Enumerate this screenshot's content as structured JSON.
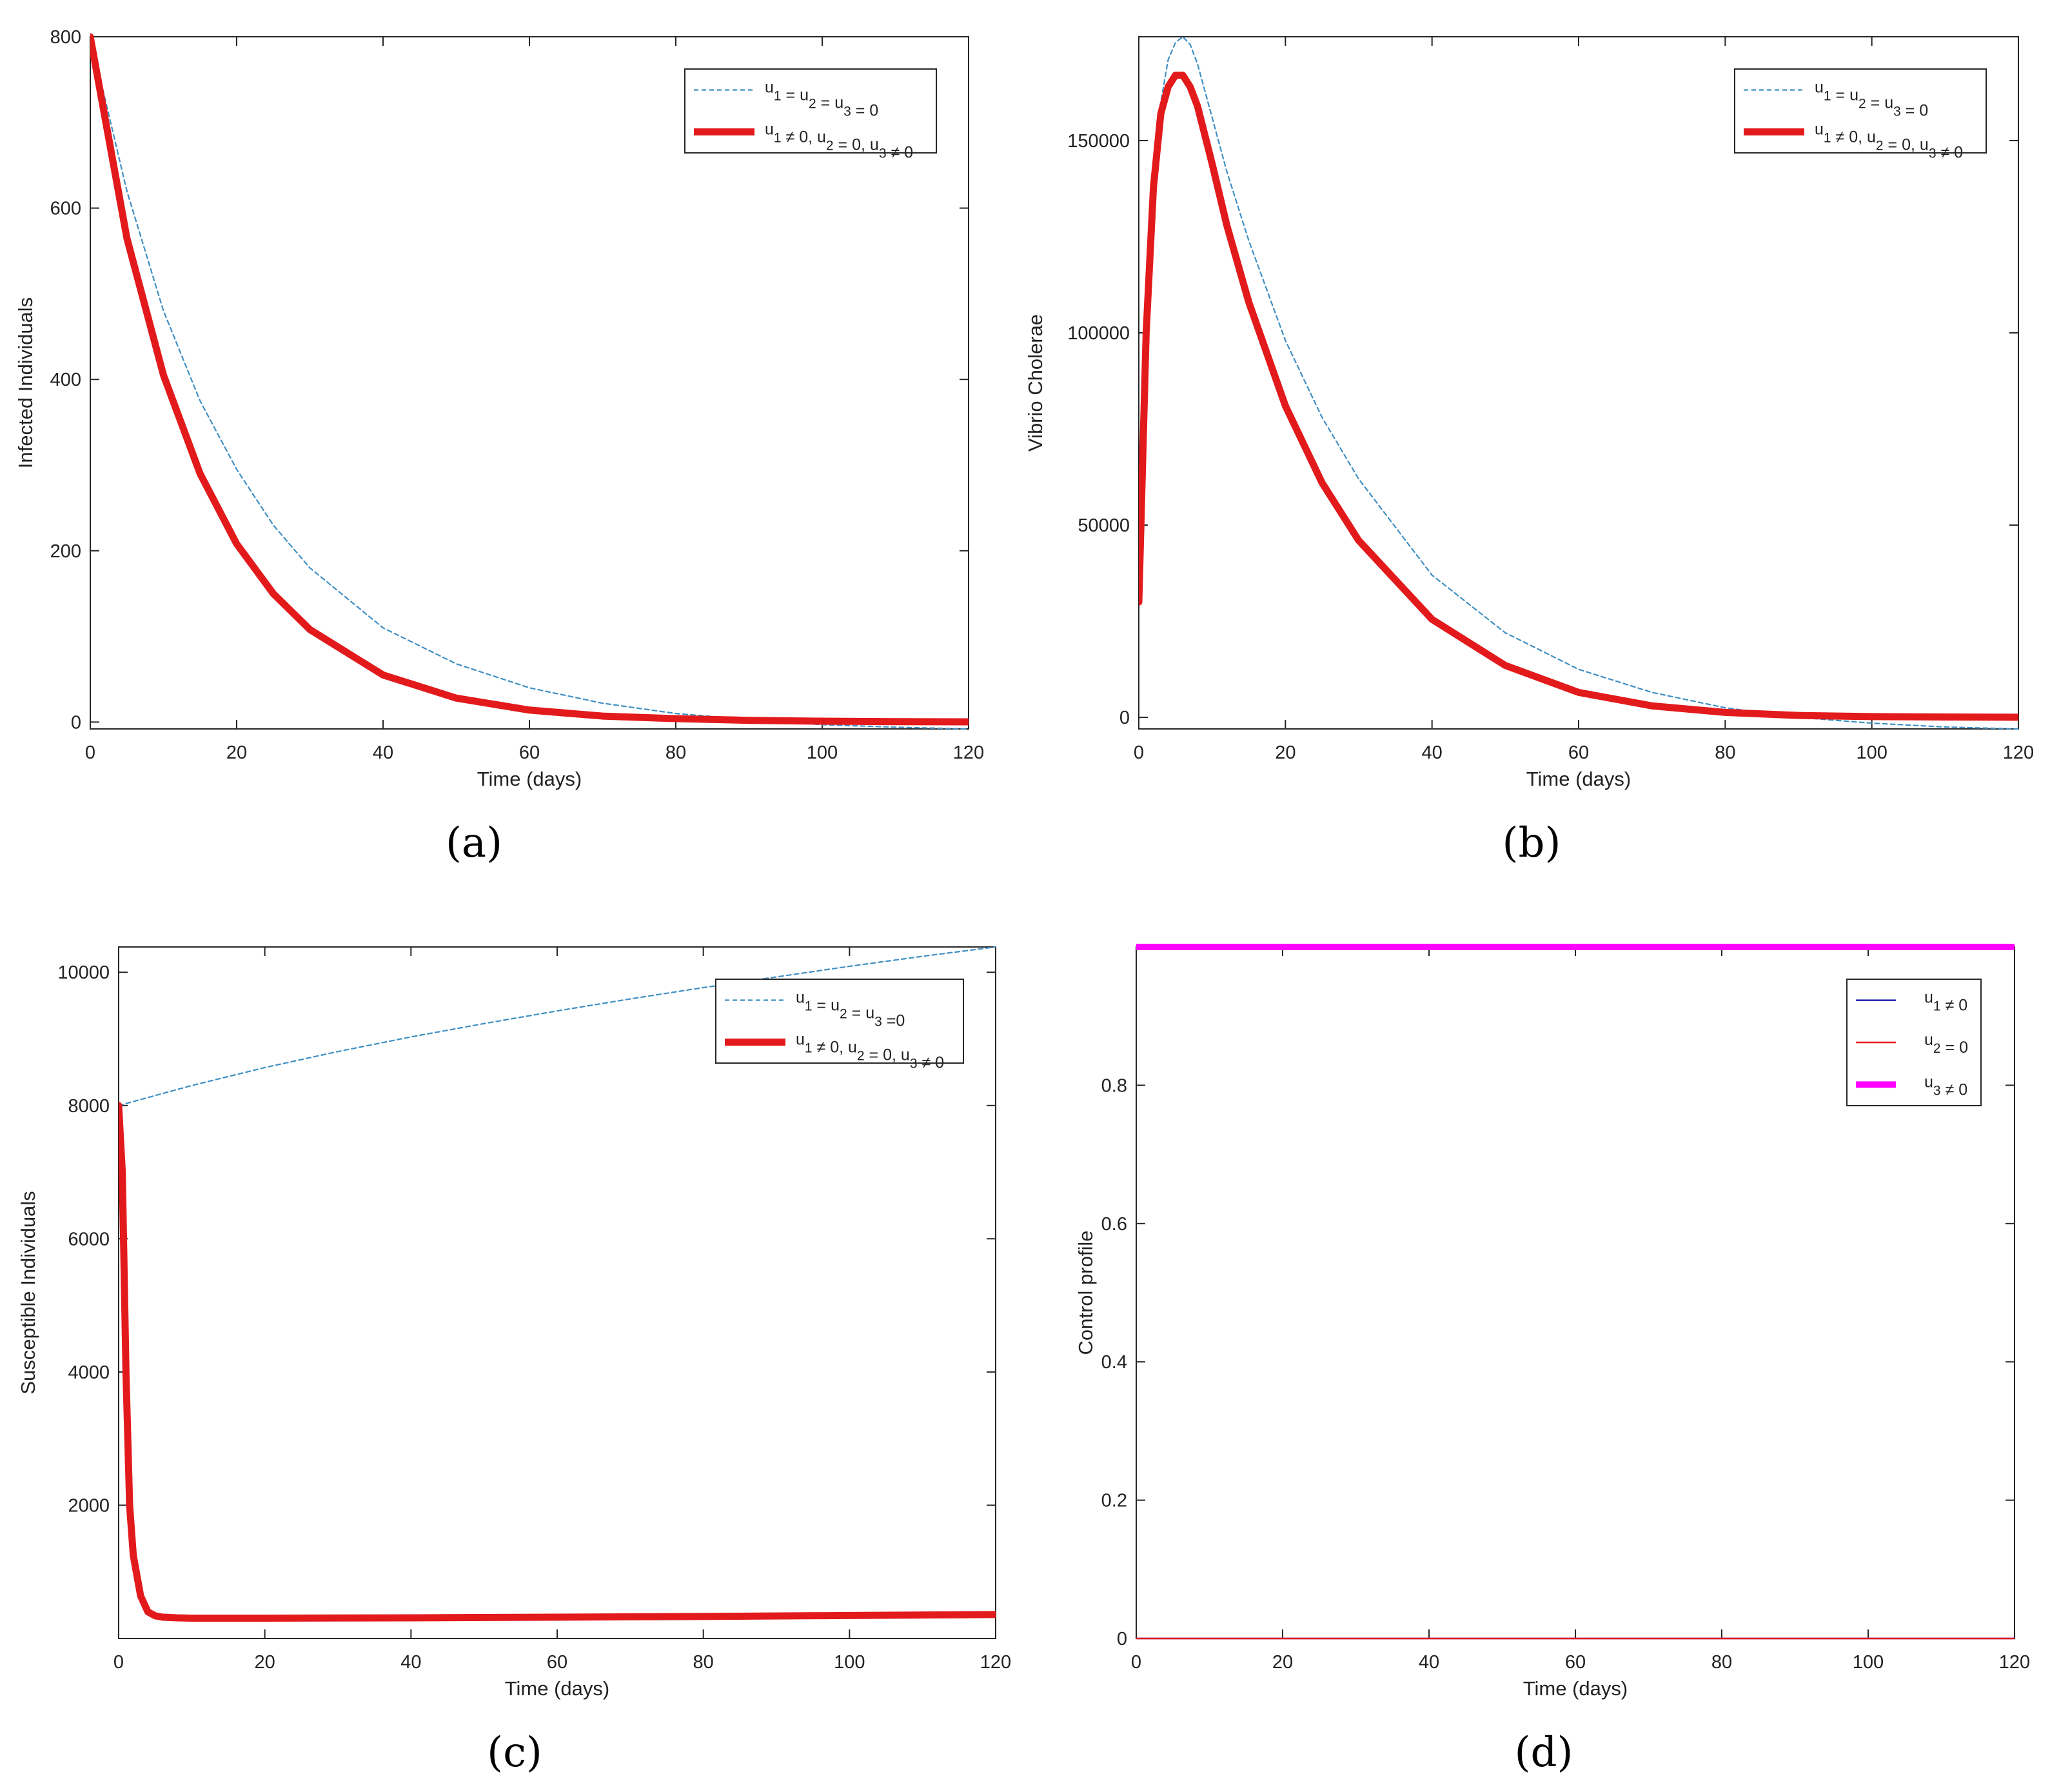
{
  "figure": {
    "panels": [
      "(a)",
      "(b)",
      "(c)",
      "(d)"
    ],
    "xlabel": "Time (days)"
  },
  "colors": {
    "red": "#e31a1c",
    "dashed_blue": "#3f8fc4",
    "blue": "#2b2bb5",
    "magenta": "#ff00ff",
    "axis": "#262626"
  },
  "chart_data": [
    {
      "id": "a",
      "type": "line",
      "title": "",
      "xlabel": "Time (days)",
      "ylabel": "Infected Individuals",
      "xlim": [
        0,
        120
      ],
      "ylim": [
        -8,
        800
      ],
      "xticks": [
        0,
        20,
        40,
        60,
        80,
        100,
        120
      ],
      "yticks": [
        0,
        200,
        400,
        600,
        800
      ],
      "legend_position": "top-right",
      "series": [
        {
          "name": "u1 = u2 = u3 = 0",
          "style": "dashed-thin",
          "color": "#3f8fc4",
          "x": [
            0,
            5,
            10,
            15,
            20,
            25,
            30,
            40,
            50,
            60,
            70,
            80,
            90,
            100,
            110,
            120
          ],
          "y": [
            800,
            620,
            480,
            375,
            295,
            230,
            180,
            110,
            68,
            40,
            22,
            10,
            3,
            -3,
            -6,
            -8
          ]
        },
        {
          "name": "u1 ≠ 0, u2 = 0, u3 ≠ 0",
          "style": "solid-thick",
          "color": "#e31a1c",
          "x": [
            0,
            5,
            10,
            15,
            20,
            25,
            30,
            40,
            50,
            60,
            70,
            80,
            90,
            100,
            110,
            120
          ],
          "y": [
            800,
            565,
            405,
            290,
            208,
            150,
            108,
            55,
            28,
            14,
            7,
            4,
            2,
            1,
            0.5,
            0.3
          ]
        }
      ],
      "legend": [
        {
          "sub": [
            "1",
            "2",
            "3"
          ],
          "text": "u1 = u2 = u3 = 0"
        },
        {
          "sub": [
            "1",
            "2",
            "3"
          ],
          "text": "u1 ≠ 0, u2 = 0, u3 ≠ 0"
        }
      ]
    },
    {
      "id": "b",
      "type": "line",
      "title": "",
      "xlabel": "Time (days)",
      "ylabel": "Vibrio Cholerae",
      "xlim": [
        0,
        120
      ],
      "ylim": [
        -3000,
        177000
      ],
      "xticks": [
        0,
        20,
        40,
        60,
        80,
        100,
        120
      ],
      "yticks": [
        0,
        50000,
        100000,
        150000
      ],
      "legend_position": "top-right",
      "series": [
        {
          "name": "u1 = u2 = u3 = 0",
          "style": "dashed-thin",
          "color": "#3f8fc4",
          "x": [
            0,
            1,
            2,
            3,
            4,
            5,
            6,
            7,
            8,
            10,
            12,
            15,
            20,
            25,
            30,
            40,
            50,
            60,
            70,
            80,
            90,
            100,
            110,
            120
          ],
          "y": [
            30000,
            100000,
            138000,
            160000,
            171000,
            175500,
            177000,
            175000,
            170000,
            156000,
            142000,
            124000,
            98000,
            78000,
            62000,
            37000,
            22000,
            12500,
            6500,
            2500,
            0,
            -1500,
            -2500,
            -3000
          ]
        },
        {
          "name": "u1 ≠ 0, u2 = 0, u3 ≠ 0",
          "style": "solid-thick",
          "color": "#e31a1c",
          "x": [
            0,
            1,
            2,
            3,
            4,
            5,
            6,
            7,
            8,
            10,
            12,
            15,
            20,
            25,
            30,
            40,
            50,
            60,
            70,
            80,
            90,
            100,
            110,
            120
          ],
          "y": [
            30000,
            100000,
            138000,
            157000,
            164000,
            167000,
            167000,
            164000,
            159000,
            144000,
            128000,
            108000,
            81000,
            61000,
            46000,
            25500,
            13500,
            6500,
            3000,
            1300,
            500,
            200,
            100,
            50
          ]
        }
      ],
      "legend": [
        {
          "sub": [
            "1",
            "2",
            "3"
          ],
          "text": "u1 = u2 = u3 = 0"
        },
        {
          "sub": [
            "1",
            "2",
            "3"
          ],
          "text": "u1 ≠ 0, u2 = 0, u3 ≠ 0"
        }
      ]
    },
    {
      "id": "c",
      "type": "line",
      "title": "",
      "xlabel": "Time (days)",
      "ylabel": "Susceptible Individuals",
      "xlim": [
        0,
        120
      ],
      "ylim": [
        0,
        10380
      ],
      "xticks": [
        0,
        20,
        40,
        60,
        80,
        100,
        120
      ],
      "yticks": [
        2000,
        4000,
        6000,
        8000,
        10000
      ],
      "legend_position": "top-right",
      "series": [
        {
          "name": "u1 = u2 = u3 =0",
          "style": "dashed-thin",
          "color": "#3f8fc4",
          "x": [
            0,
            5,
            10,
            20,
            30,
            40,
            50,
            60,
            70,
            80,
            90,
            100,
            110,
            120
          ],
          "y": [
            8000,
            8150,
            8300,
            8570,
            8810,
            9030,
            9230,
            9420,
            9600,
            9770,
            9930,
            10090,
            10240,
            10380
          ]
        },
        {
          "name": "u1 ≠ 0, u2 = 0, u3 ≠ 0",
          "style": "solid-thick",
          "color": "#e31a1c",
          "x": [
            0,
            0.5,
            1,
            1.5,
            2,
            3,
            4,
            5,
            6,
            8,
            10,
            20,
            40,
            60,
            80,
            100,
            120
          ],
          "y": [
            8000,
            7000,
            4000,
            2000,
            1250,
            640,
            400,
            340,
            320,
            310,
            305,
            305,
            310,
            320,
            330,
            345,
            360
          ]
        }
      ],
      "legend": [
        {
          "sub": [
            "1",
            "2",
            "3"
          ],
          "text": "u1 = u2 = u3 =0"
        },
        {
          "sub": [
            "1",
            "2",
            "3"
          ],
          "text": "u1 ≠ 0, u2 = 0, u3 ≠ 0"
        }
      ]
    },
    {
      "id": "d",
      "type": "line",
      "title": "",
      "xlabel": "Time (days)",
      "ylabel": "Control profile",
      "xlim": [
        0,
        120
      ],
      "ylim": [
        0,
        1
      ],
      "xticks": [
        0,
        20,
        40,
        60,
        80,
        100,
        120
      ],
      "yticks": [
        0,
        0.2,
        0.4,
        0.6,
        0.8
      ],
      "legend_position": "top-right",
      "series": [
        {
          "name": "u1 ≠ 0",
          "style": "solid-thin",
          "color": "#2b2bb5",
          "x": [
            0,
            120
          ],
          "y": [
            0,
            0
          ]
        },
        {
          "name": "u2 = 0",
          "style": "solid-thin",
          "color": "#e31a1c",
          "x": [
            0,
            120
          ],
          "y": [
            0,
            0
          ]
        },
        {
          "name": "u3 ≠ 0",
          "style": "solid-thick",
          "color": "#ff00ff",
          "x": [
            0,
            120
          ],
          "y": [
            1,
            1
          ]
        }
      ],
      "legend": [
        {
          "sub": [
            "1"
          ],
          "text": "u1 ≠ 0"
        },
        {
          "sub": [
            "2"
          ],
          "text": "u2 = 0"
        },
        {
          "sub": [
            "3"
          ],
          "text": "u3 ≠ 0"
        }
      ]
    }
  ]
}
